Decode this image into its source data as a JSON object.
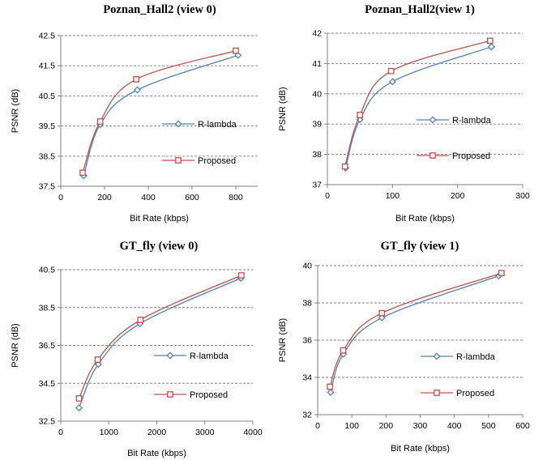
{
  "chart_data": [
    {
      "type": "line",
      "title": "Poznan_Hall2 (view 0)",
      "xlabel": "Bit Rate (kbps)",
      "ylabel": "PSNR (dB)",
      "xlim": [
        0,
        900
      ],
      "ylim": [
        37.5,
        42.5
      ],
      "xticks": [
        "0",
        "200",
        "400",
        "600",
        "800"
      ],
      "yticks": [
        "37.5",
        "38.5",
        "39.5",
        "40.5",
        "41.5",
        "42.5"
      ],
      "grid": "horizontal dashed",
      "legend_position": "right",
      "series": [
        {
          "name": "R-lambda",
          "color": "#4f81bd",
          "marker": "diamond",
          "points": [
            [
              105,
              37.85
            ],
            [
              180,
              39.55
            ],
            [
              350,
              40.7
            ],
            [
              810,
              41.85
            ]
          ]
        },
        {
          "name": "Proposed",
          "color": "#c0504d",
          "marker": "square",
          "points": [
            [
              100,
              37.95
            ],
            [
              180,
              39.65
            ],
            [
              345,
              41.05
            ],
            [
              800,
              42.0
            ]
          ]
        }
      ]
    },
    {
      "type": "line",
      "title": "Poznan_Hall2(view 1)",
      "xlabel": "Bit Rate (kbps)",
      "ylabel": "PSNR (dB)",
      "xlim": [
        0,
        300
      ],
      "ylim": [
        37,
        42
      ],
      "xticks": [
        "0",
        "100",
        "200",
        "300"
      ],
      "yticks": [
        "37",
        "38",
        "39",
        "40",
        "41",
        "42"
      ],
      "grid": "horizontal dashed",
      "legend_position": "right",
      "series": [
        {
          "name": "R-lambda",
          "color": "#4f81bd",
          "marker": "diamond",
          "points": [
            [
              28,
              37.55
            ],
            [
              50,
              39.15
            ],
            [
              100,
              40.4
            ],
            [
              252,
              41.55
            ]
          ]
        },
        {
          "name": "Proposed",
          "color": "#c0504d",
          "marker": "square",
          "points": [
            [
              27,
              37.6
            ],
            [
              50,
              39.3
            ],
            [
              98,
              40.75
            ],
            [
              250,
              41.75
            ]
          ]
        }
      ]
    },
    {
      "type": "line",
      "title": "GT_fly (view 0)",
      "xlabel": "Bit Rate (kbps)",
      "ylabel": "PSNR (dB)",
      "xlim": [
        0,
        4000
      ],
      "ylim": [
        32.5,
        40.5
      ],
      "xticks": [
        "0",
        "1000",
        "2000",
        "3000",
        "4000"
      ],
      "yticks": [
        "32.5",
        "34.5",
        "36.5",
        "38.5",
        "40.5"
      ],
      "grid": "horizontal dashed",
      "legend_position": "right",
      "series": [
        {
          "name": "R-lambda",
          "color": "#4f81bd",
          "marker": "diamond",
          "points": [
            [
              380,
              33.2
            ],
            [
              780,
              35.5
            ],
            [
              1650,
              37.65
            ],
            [
              3750,
              40.05
            ]
          ]
        },
        {
          "name": "Proposed",
          "color": "#c0504d",
          "marker": "square",
          "points": [
            [
              380,
              33.7
            ],
            [
              770,
              35.75
            ],
            [
              1660,
              37.85
            ],
            [
              3760,
              40.2
            ]
          ]
        }
      ]
    },
    {
      "type": "line",
      "title": "GT_fly (view 1)",
      "xlabel": "Bit Rate (kbps)",
      "ylabel": "PSNR (dB)",
      "xlim": [
        0,
        600
      ],
      "ylim": [
        32,
        40
      ],
      "xticks": [
        "0",
        "100",
        "200",
        "300",
        "400",
        "500",
        "600"
      ],
      "yticks": [
        "32",
        "34",
        "36",
        "38",
        "40"
      ],
      "grid": "horizontal dashed",
      "legend_position": "right",
      "series": [
        {
          "name": "R-lambda",
          "color": "#4f81bd",
          "marker": "diamond",
          "points": [
            [
              38,
              33.2
            ],
            [
              75,
              35.25
            ],
            [
              188,
              37.2
            ],
            [
              530,
              39.45
            ]
          ]
        },
        {
          "name": "Proposed",
          "color": "#c0504d",
          "marker": "square",
          "points": [
            [
              36,
              33.5
            ],
            [
              75,
              35.45
            ],
            [
              188,
              37.45
            ],
            [
              538,
              39.6
            ]
          ]
        }
      ]
    }
  ]
}
